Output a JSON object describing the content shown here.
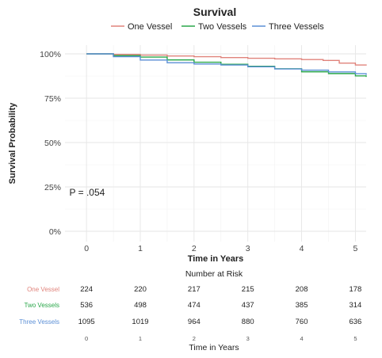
{
  "chart_data": {
    "type": "line",
    "title": "Survival",
    "xlabel": "Time in Years",
    "ylabel": "Survival Probability",
    "xlim": [
      -0.4,
      5.2
    ],
    "ylim": [
      0,
      1.0
    ],
    "x_ticks": [
      0,
      1,
      2,
      3,
      4,
      5
    ],
    "y_ticks": [
      0,
      0.25,
      0.5,
      0.75,
      1.0
    ],
    "y_tick_labels": [
      "0%",
      "25%",
      "50%",
      "75%",
      "100%"
    ],
    "legend_position": "top",
    "grid": true,
    "annotation": {
      "text": "P =   .054",
      "x": 0.3,
      "y": 0.2
    },
    "series": [
      {
        "name": "One Vessel",
        "color": "#e0837b",
        "x": [
          0,
          0.5,
          1.0,
          1.5,
          2.0,
          2.5,
          3.0,
          3.5,
          4.0,
          4.4,
          4.7,
          5.0,
          5.2
        ],
        "y": [
          1.0,
          0.997,
          0.993,
          0.988,
          0.984,
          0.979,
          0.975,
          0.972,
          0.968,
          0.963,
          0.948,
          0.937,
          0.934
        ]
      },
      {
        "name": "Two Vessels",
        "color": "#2aa74a",
        "x": [
          0,
          0.5,
          1.0,
          1.5,
          2.0,
          2.5,
          3.0,
          3.5,
          4.0,
          4.5,
          5.0,
          5.2
        ],
        "y": [
          1.0,
          0.99,
          0.982,
          0.966,
          0.953,
          0.941,
          0.93,
          0.916,
          0.899,
          0.889,
          0.876,
          0.87
        ]
      },
      {
        "name": "Three Vessels",
        "color": "#5b8fd6",
        "x": [
          0,
          0.5,
          1.0,
          1.5,
          2.0,
          2.5,
          3.0,
          3.5,
          4.0,
          4.5,
          5.0,
          5.2
        ],
        "y": [
          1.0,
          0.984,
          0.965,
          0.95,
          0.943,
          0.937,
          0.927,
          0.915,
          0.908,
          0.898,
          0.888,
          0.881
        ]
      }
    ]
  },
  "risk_table": {
    "title": "Number at Risk",
    "xlabel": "Time in Years",
    "x_ticks": [
      0,
      1,
      2,
      3,
      4,
      5
    ],
    "rows": [
      {
        "label": "One Vessel",
        "color": "#e0837b",
        "values": [
          "224",
          "220",
          "217",
          "215",
          "208",
          "178"
        ]
      },
      {
        "label": "Two Vessels",
        "color": "#2aa74a",
        "values": [
          "536",
          "498",
          "474",
          "437",
          "385",
          "314"
        ]
      },
      {
        "label": "Three Vessels",
        "color": "#5b8fd6",
        "values": [
          "1095",
          "1019",
          "964",
          "880",
          "760",
          "636"
        ]
      }
    ]
  }
}
